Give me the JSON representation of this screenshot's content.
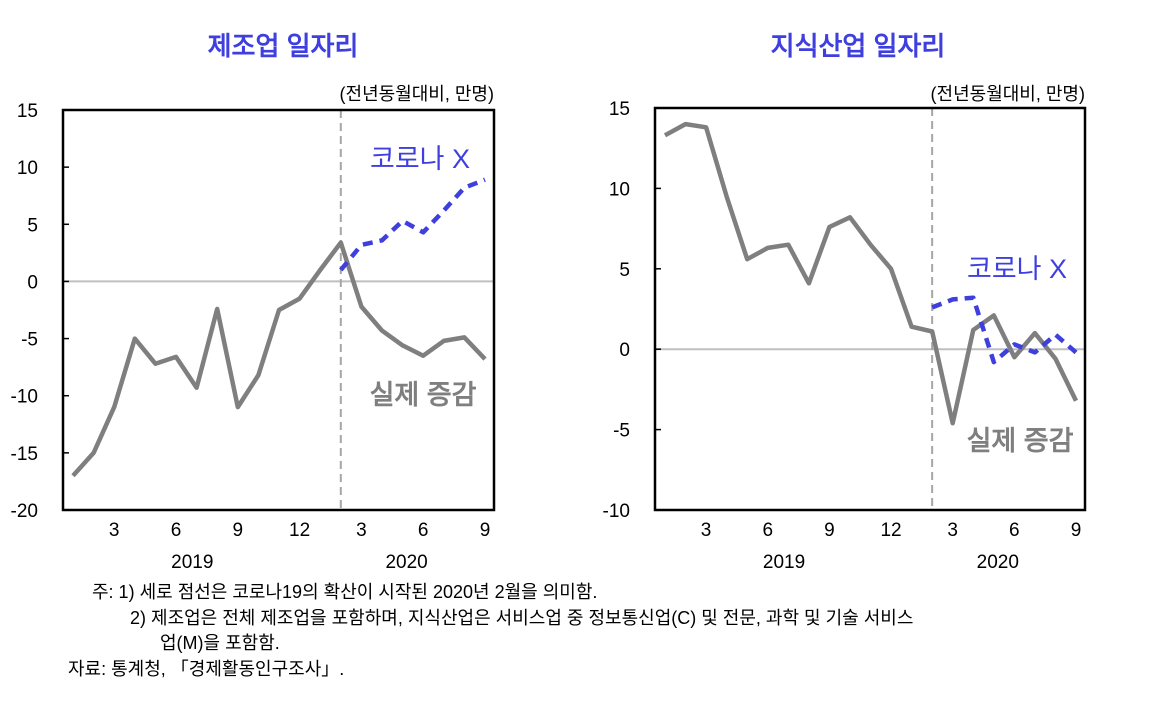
{
  "chart_data": [
    {
      "type": "line",
      "title": "제조업 일자리",
      "unit_label": "(전년동월대비, 만명)",
      "x_ticks": [
        "3",
        "6",
        "9",
        "12",
        "3",
        "6",
        "9"
      ],
      "x_years": [
        "2019",
        "2020"
      ],
      "months": [
        "2019-01",
        "2019-02",
        "2019-03",
        "2019-04",
        "2019-05",
        "2019-06",
        "2019-07",
        "2019-08",
        "2019-09",
        "2019-10",
        "2019-11",
        "2019-12",
        "2020-01",
        "2020-02",
        "2020-03",
        "2020-04",
        "2020-05",
        "2020-06",
        "2020-07",
        "2020-08",
        "2020-09"
      ],
      "ylim": [
        -20,
        15
      ],
      "yticks": [
        -20,
        -15,
        -10,
        -5,
        0,
        5,
        10,
        15
      ],
      "vline_at": "2020-02",
      "series": [
        {
          "name": "실제 증감",
          "color": "#7f7f7f",
          "style": "solid",
          "start": "2019-01",
          "values": [
            -17.0,
            -15.0,
            -11.0,
            -5.0,
            -7.2,
            -6.6,
            -9.3,
            -2.4,
            -11.0,
            -8.2,
            -2.5,
            -1.5,
            1.0,
            3.4,
            -2.2,
            -4.3,
            -5.6,
            -6.5,
            -5.2,
            -4.9,
            -6.8
          ]
        },
        {
          "name": "코로나 X",
          "color": "#3f3fe0",
          "style": "dashed",
          "start": "2020-02",
          "values": [
            1.0,
            3.2,
            3.6,
            5.3,
            4.3,
            6.2,
            8.2,
            8.9
          ]
        }
      ]
    },
    {
      "type": "line",
      "title": "지식산업 일자리",
      "unit_label": "(전년동월대비, 만명)",
      "x_ticks": [
        "3",
        "6",
        "9",
        "12",
        "3",
        "6",
        "9"
      ],
      "x_years": [
        "2019",
        "2020"
      ],
      "months": [
        "2019-01",
        "2019-02",
        "2019-03",
        "2019-04",
        "2019-05",
        "2019-06",
        "2019-07",
        "2019-08",
        "2019-09",
        "2019-10",
        "2019-11",
        "2019-12",
        "2020-01",
        "2020-02",
        "2020-03",
        "2020-04",
        "2020-05",
        "2020-06",
        "2020-07",
        "2020-08",
        "2020-09"
      ],
      "ylim": [
        -10,
        15
      ],
      "yticks": [
        -10,
        -5,
        0,
        5,
        10,
        15
      ],
      "vline_at": "2020-02",
      "series": [
        {
          "name": "실제 증감",
          "color": "#7f7f7f",
          "style": "solid",
          "start": "2019-01",
          "values": [
            13.3,
            14.0,
            13.8,
            9.5,
            5.6,
            6.3,
            6.5,
            4.1,
            7.6,
            8.2,
            6.5,
            5.0,
            1.4,
            1.1,
            -4.6,
            1.2,
            2.1,
            -0.5,
            1.0,
            -0.6,
            -3.2
          ]
        },
        {
          "name": "코로나 X",
          "color": "#3f3fe0",
          "style": "dashed",
          "start": "2020-02",
          "values": [
            2.6,
            3.1,
            3.2,
            -0.8,
            0.3,
            -0.2,
            0.9,
            -0.2
          ]
        }
      ]
    }
  ],
  "notes": {
    "note1": "주:  1)  세로 점선은 코로나19의 확산이 시작된 2020년 2월을 의미함.",
    "note2a": "2)  제조업은 전체 제조업을 포함하며, 지식산업은 서비스업 중 정보통신업(C) 및 전문, 과학 및 기술 서비스",
    "note2b": "업(M)을 포함함.",
    "source": "자료:  통계청, 「경제활동인구조사」."
  }
}
